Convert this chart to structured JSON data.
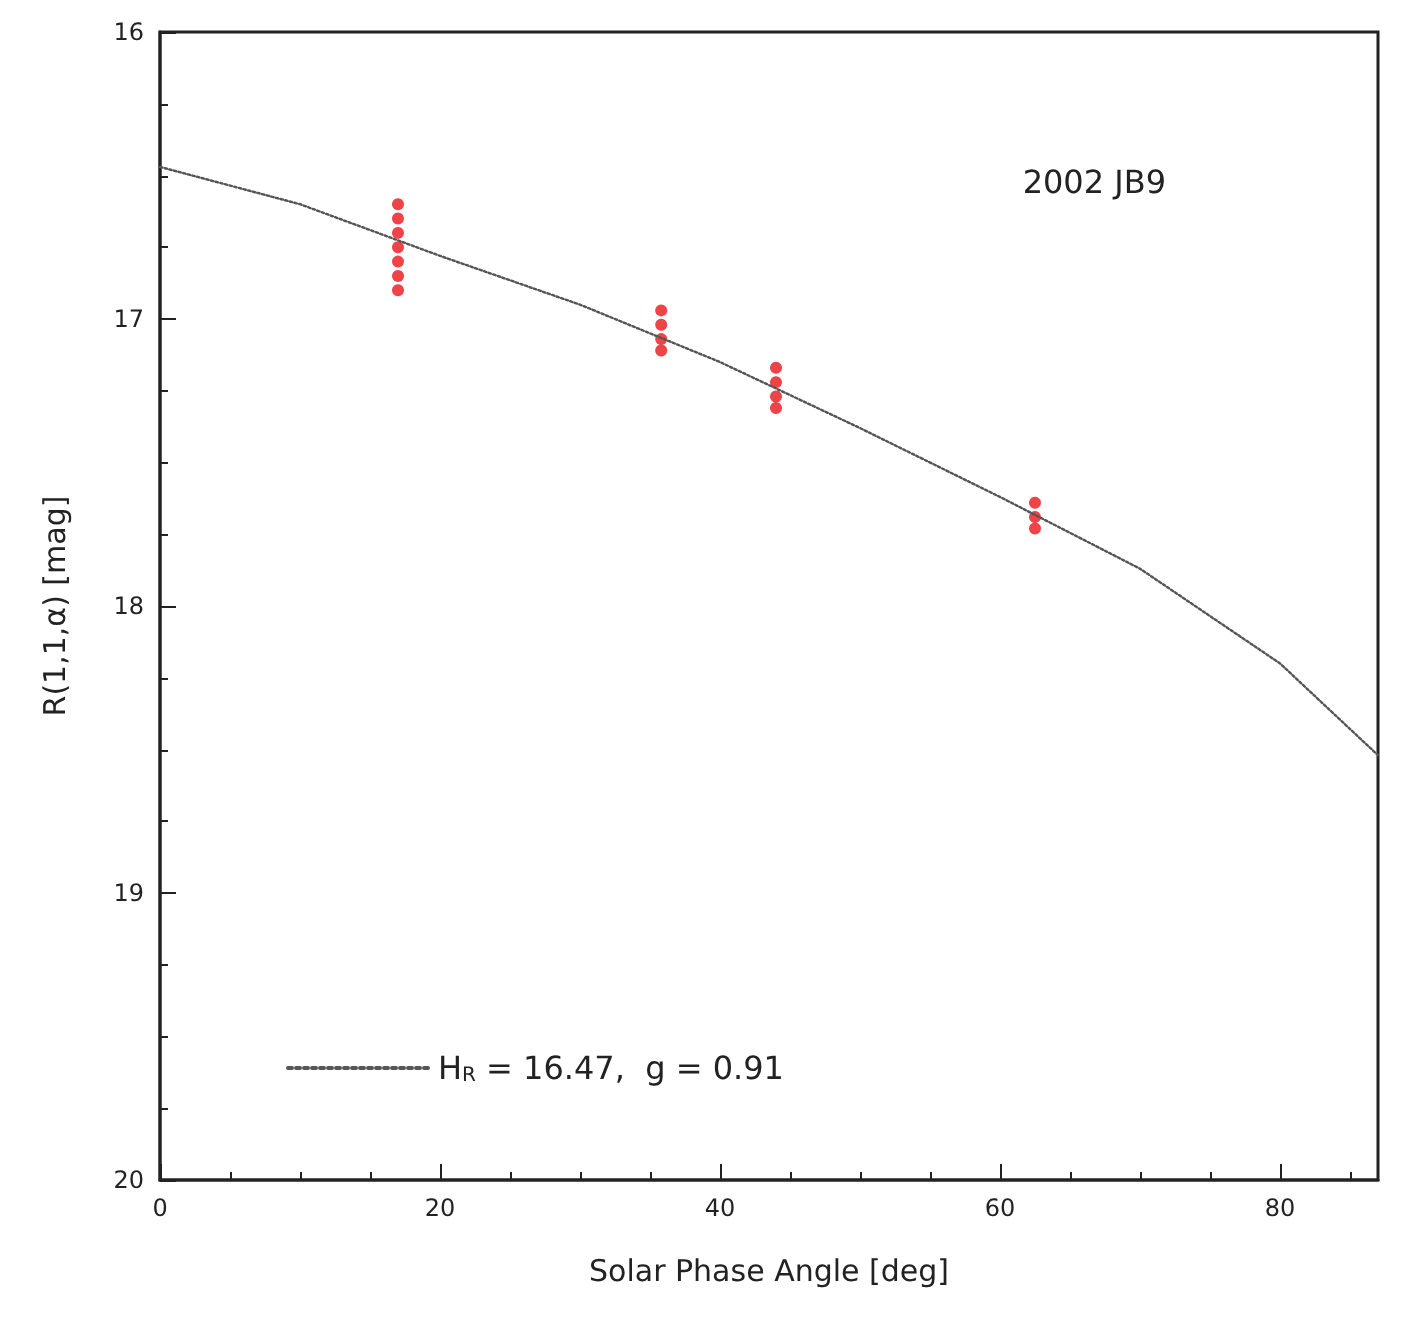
{
  "chart_data": {
    "type": "scatter",
    "xlabel": "Solar Phase Angle [deg]",
    "ylabel": "R(1,1,α) [mag]",
    "annotations": [
      "2002 JB9"
    ],
    "xlim": [
      0,
      87
    ],
    "xticks": [
      0,
      20,
      40,
      60,
      80
    ],
    "ylim": [
      20,
      16
    ],
    "yticks": [
      16,
      17,
      18,
      19,
      20
    ],
    "grid": false,
    "legend": "bottom left",
    "series": [
      {
        "color": "#e8141c",
        "marker": "circle",
        "x": [
          17,
          17,
          17,
          17,
          17,
          17,
          17,
          35.8,
          35.8,
          35.8,
          35.8,
          44,
          44,
          44,
          44,
          62.5,
          62.5,
          62.5
        ],
        "values": [
          16.6,
          16.65,
          16.7,
          16.75,
          16.8,
          16.85,
          16.9,
          16.97,
          17.02,
          17.07,
          17.11,
          17.17,
          17.22,
          17.27,
          17.31,
          17.64,
          17.69,
          17.73
        ]
      },
      {
        "type": "line",
        "name": "H$_{R}$ = 16.47,  g = 0.91",
        "color": "#555555",
        "marker": "none",
        "line_style": "dotted",
        "x": [
          0,
          10,
          20,
          30,
          40,
          50,
          60,
          70,
          80,
          87
        ],
        "values": [
          16.47,
          16.6,
          16.78,
          16.95,
          17.15,
          17.38,
          17.62,
          17.87,
          18.2,
          18.52
        ]
      }
    ]
  }
}
